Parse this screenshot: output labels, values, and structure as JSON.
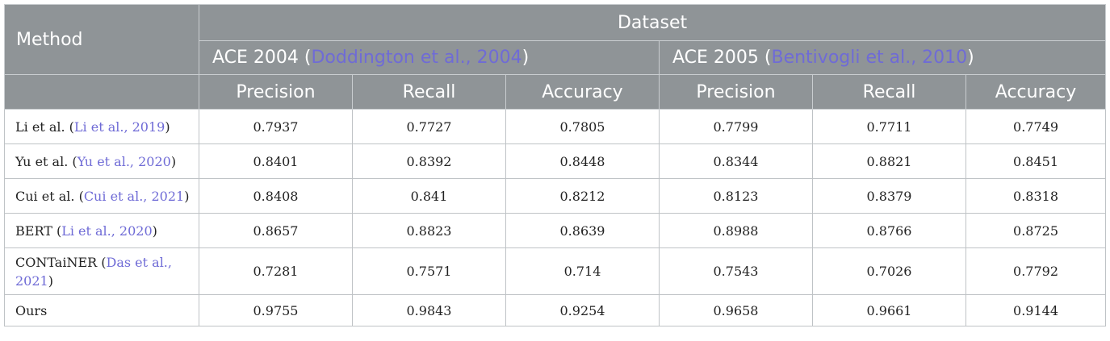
{
  "header": {
    "method": "Method",
    "dataset": "Dataset",
    "groups": [
      {
        "name": "ACE 2004 (",
        "cite": "Doddington et al., 2004",
        "close": ")"
      },
      {
        "name": "ACE 2005 (",
        "cite": "Bentivogli et al., 2010",
        "close": ")"
      }
    ],
    "metrics": [
      "Precision",
      "Recall",
      "Accuracy",
      "Precision",
      "Recall",
      "Accuracy"
    ]
  },
  "rows": [
    {
      "method": "Li et al. (",
      "cite": "Li et al., 2019",
      "close": ")",
      "values": [
        "0.7937",
        "0.7727",
        "0.7805",
        "0.7799",
        "0.7711",
        "0.7749"
      ]
    },
    {
      "method": "Yu et al. (",
      "cite": "Yu et al., 2020",
      "close": ")",
      "values": [
        "0.8401",
        "0.8392",
        "0.8448",
        "0.8344",
        "0.8821",
        "0.8451"
      ]
    },
    {
      "method": "Cui et al. (",
      "cite": "Cui et al., 2021",
      "close": ")",
      "values": [
        "0.8408",
        "0.841",
        "0.8212",
        "0.8123",
        "0.8379",
        "0.8318"
      ]
    },
    {
      "method": "BERT (",
      "cite": "Li et al., 2020",
      "close": ")",
      "values": [
        "0.8657",
        "0.8823",
        "0.8639",
        "0.8988",
        "0.8766",
        "0.8725"
      ]
    },
    {
      "method": "CONTaiNER (",
      "cite": "Das et al., 2021",
      "close": ")",
      "values": [
        "0.7281",
        "0.7571",
        "0.714",
        "0.7543",
        "0.7026",
        "0.7792"
      ]
    },
    {
      "method": "Ours",
      "cite": "",
      "close": "",
      "values": [
        "0.9755",
        "0.9843",
        "0.9254",
        "0.9658",
        "0.9661",
        "0.9144"
      ]
    }
  ]
}
